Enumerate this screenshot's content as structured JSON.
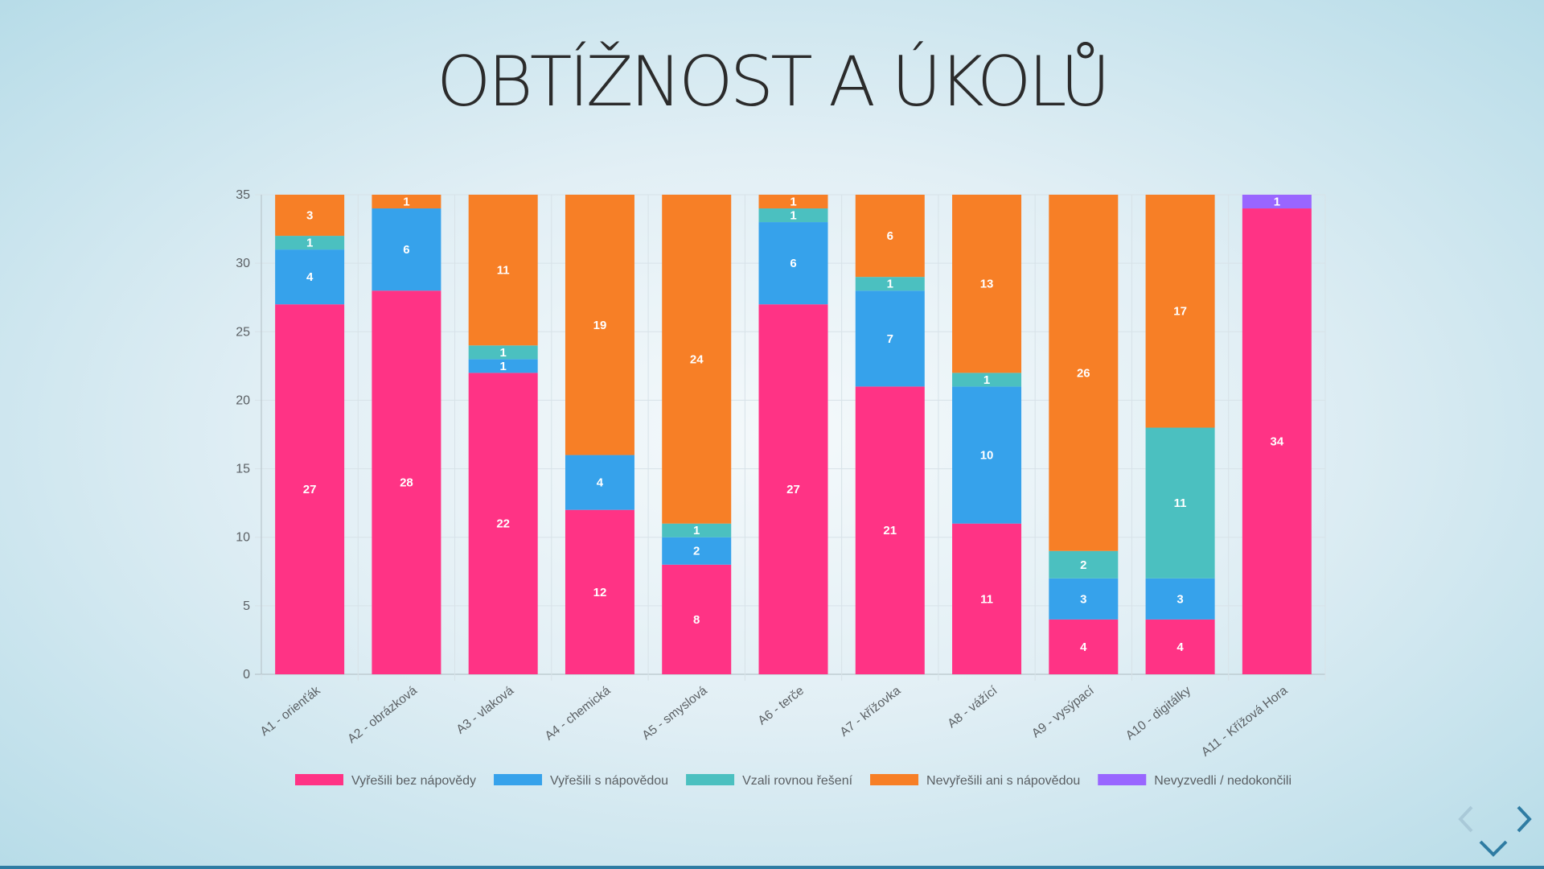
{
  "slide": {
    "title": "OBTÍŽNOST A ÚKOLŮ"
  },
  "chart_data": {
    "type": "bar",
    "stacked": true,
    "title": "",
    "xlabel": "",
    "ylabel": "",
    "ylim": [
      0,
      35
    ],
    "y_ticks": [
      0,
      5,
      10,
      15,
      20,
      25,
      30,
      35
    ],
    "grid": true,
    "legend_position": "bottom",
    "categories": [
      "A1 - orienťák",
      "A2 - obrázková",
      "A3 - vlaková",
      "A4 - chemická",
      "A5 - smyslová",
      "A6 - terče",
      "A7 - křížovka",
      "A8 - vážící",
      "A9 - vysýpací",
      "A10 - digitálky",
      "A11 - Křížová Hora"
    ],
    "series": [
      {
        "name": "Vyřešili bez nápovědy",
        "color": "#ff3385",
        "values": [
          27,
          28,
          22,
          12,
          8,
          27,
          21,
          11,
          4,
          4,
          34
        ]
      },
      {
        "name": "Vyřešili s nápovědou",
        "color": "#36a2eb",
        "values": [
          4,
          6,
          1,
          4,
          2,
          6,
          7,
          10,
          3,
          3,
          0
        ]
      },
      {
        "name": "Vzali rovnou řešení",
        "color": "#4bc0c0",
        "values": [
          1,
          0,
          1,
          0,
          1,
          1,
          1,
          1,
          2,
          11,
          0
        ]
      },
      {
        "name": "Nevyřešili ani s nápovědou",
        "color": "#f77f26",
        "values": [
          3,
          1,
          11,
          19,
          24,
          1,
          6,
          13,
          26,
          17,
          0
        ]
      },
      {
        "name": "Nevyzvedli / nedokončili",
        "color": "#9966ff",
        "values": [
          0,
          0,
          0,
          0,
          0,
          0,
          0,
          0,
          0,
          0,
          1
        ]
      }
    ]
  },
  "navigation": {
    "prev_icon": "chevron-left-icon",
    "next_icon": "chevron-right-icon",
    "down_icon": "chevron-down-icon",
    "arrow_color": "#2f7ca3",
    "arrow_disabled_color": "#a9c9d8"
  }
}
